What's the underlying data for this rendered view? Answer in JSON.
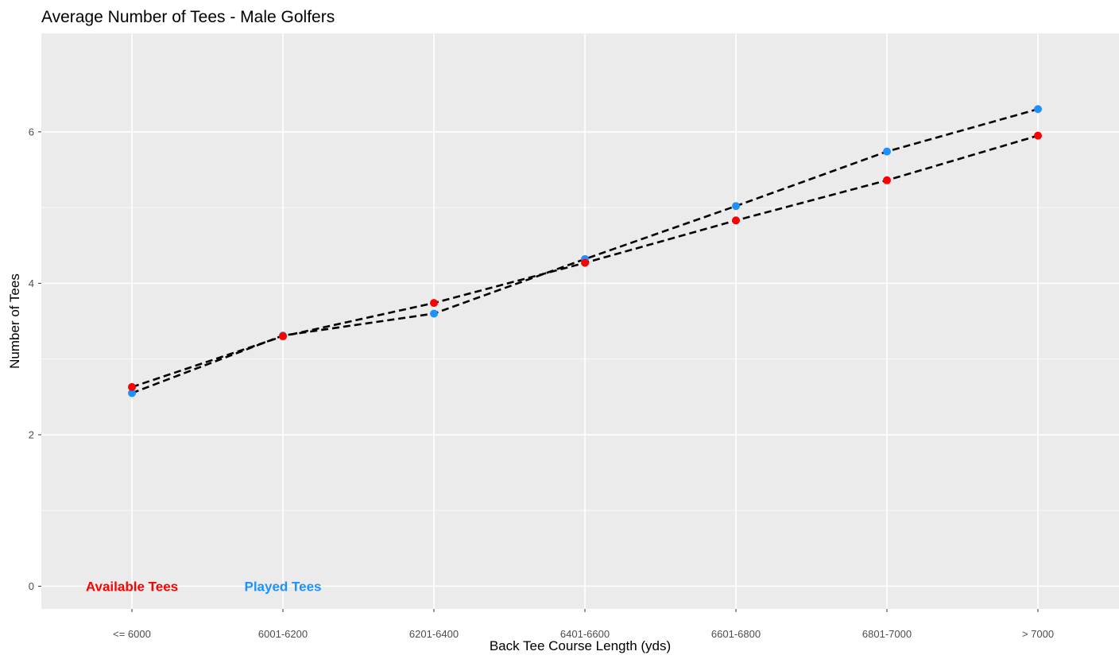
{
  "chart_data": {
    "type": "line",
    "title": "Average Number of Tees - Male Golfers",
    "xlabel": "Back Tee Course Length (yds)",
    "ylabel": "Number of Tees",
    "categories": [
      "<= 6000",
      "6001-6200",
      "6201-6400",
      "6401-6600",
      "6601-6800",
      "6801-7000",
      "> 7000"
    ],
    "series": [
      {
        "name": "Available Tees",
        "color": "#ff0000",
        "line_style": "dashed",
        "line_color": "#000000",
        "values": [
          2.63,
          3.3,
          3.74,
          4.27,
          4.83,
          5.36,
          5.95
        ]
      },
      {
        "name": "Played Tees",
        "color": "#1e90ff",
        "line_style": "dashed",
        "line_color": "#000000",
        "values": [
          2.55,
          3.31,
          3.6,
          4.32,
          5.02,
          5.74,
          6.3
        ]
      }
    ],
    "ylim": [
      -0.3,
      7.3
    ],
    "yticks": [
      0,
      2,
      4,
      6
    ],
    "ytick_labels": [
      "0",
      "2",
      "4",
      "6"
    ],
    "grid": true,
    "panel_background": "#ebebeb",
    "annotations": [
      {
        "text": "Available Tees",
        "color": "#ff0000",
        "x_category_offset": 0.0,
        "y": 0
      },
      {
        "text": "Played Tees",
        "color": "#1e90ff",
        "x_category_offset": 1.0,
        "y": 0
      }
    ]
  }
}
